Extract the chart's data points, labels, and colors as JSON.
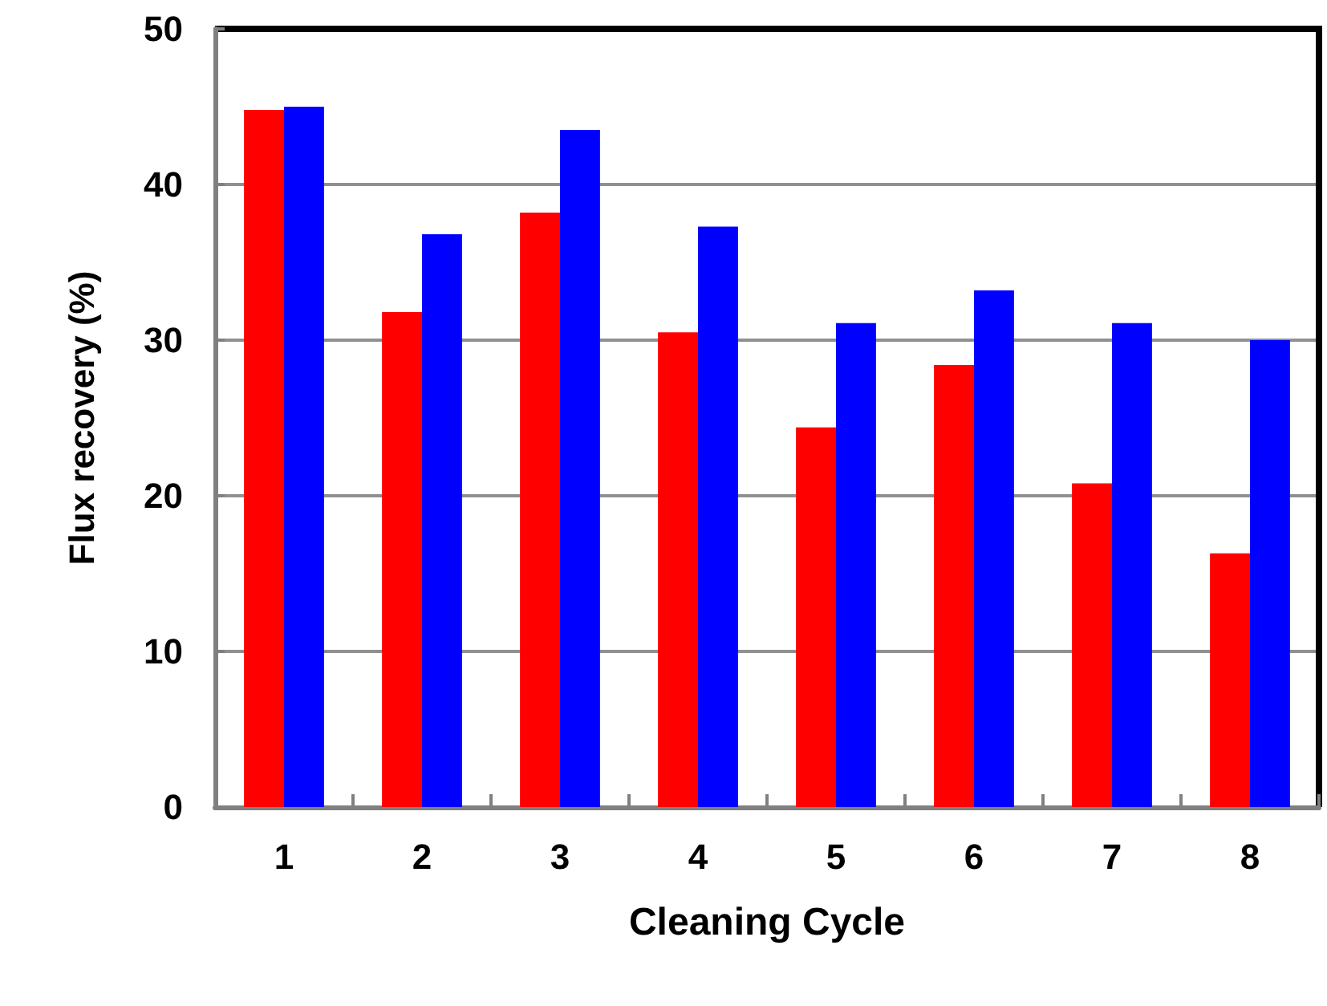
{
  "chart_data": {
    "type": "bar",
    "xlabel": "Cleaning Cycle",
    "ylabel": "Flux recovery (%)",
    "categories": [
      "1",
      "2",
      "3",
      "4",
      "5",
      "6",
      "7",
      "8"
    ],
    "series": [
      {
        "color": "#ff0000",
        "values": [
          44.8,
          31.8,
          38.2,
          30.5,
          24.4,
          28.4,
          20.8,
          16.3
        ]
      },
      {
        "color": "#0000ff",
        "values": [
          45.0,
          36.8,
          43.5,
          37.3,
          31.1,
          33.2,
          31.1,
          30.0
        ]
      }
    ],
    "ylim": [
      0,
      50
    ],
    "yticks": [
      0,
      10,
      20,
      30,
      40,
      50
    ],
    "grid": "y"
  }
}
